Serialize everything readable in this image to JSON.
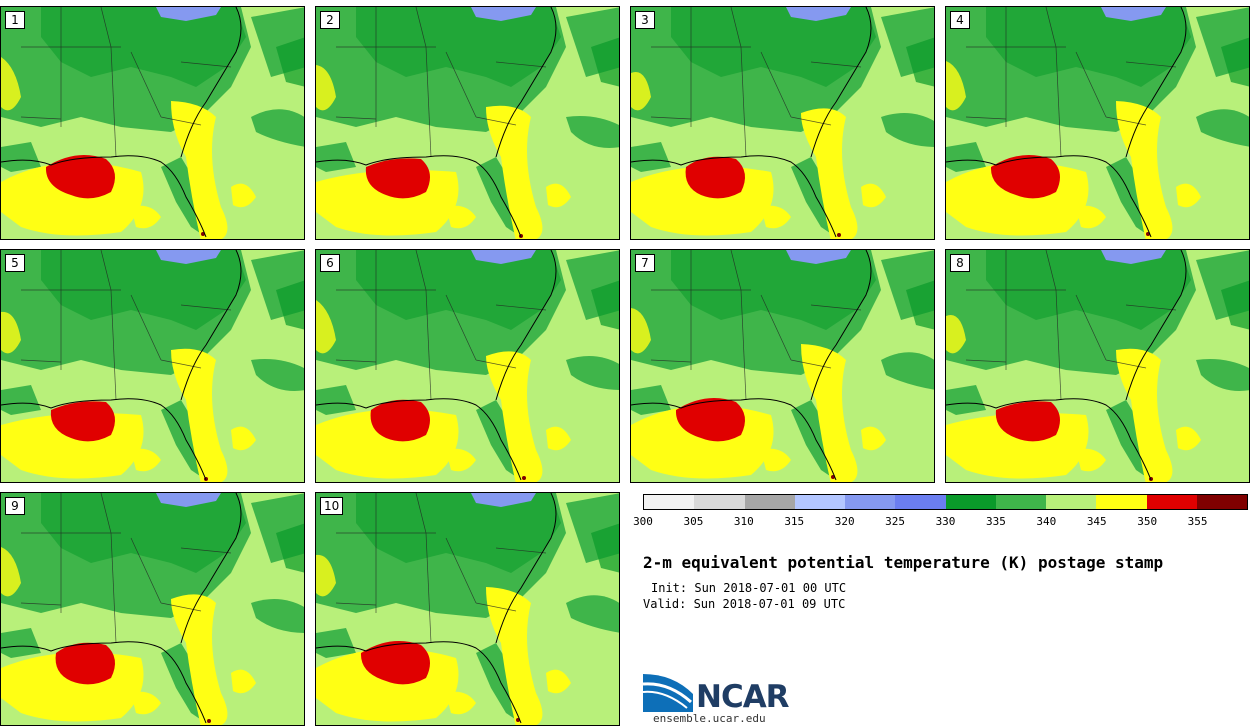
{
  "panels": [
    {
      "label": "1"
    },
    {
      "label": "2"
    },
    {
      "label": "3"
    },
    {
      "label": "4"
    },
    {
      "label": "5"
    },
    {
      "label": "6"
    },
    {
      "label": "7"
    },
    {
      "label": "8"
    },
    {
      "label": "9"
    },
    {
      "label": "10"
    }
  ],
  "colorbar": {
    "ticks": [
      "300",
      "305",
      "310",
      "315",
      "320",
      "325",
      "330",
      "335",
      "340",
      "345",
      "350",
      "355"
    ],
    "colors": [
      "#f2f2f2",
      "#d9d9d9",
      "#a6a6a6",
      "#b3c6ff",
      "#8599f0",
      "#6b7ef0",
      "#0a9a2a",
      "#3fb54a",
      "#b8f07a",
      "#ffff14",
      "#e00000",
      "#800000"
    ]
  },
  "title": "2-m equivalent potential temperature (K) postage stamp",
  "init": "Init: Sun 2018-07-01 00 UTC",
  "valid": "Valid: Sun 2018-07-01 09 UTC",
  "logo": {
    "text": "NCAR",
    "site": "ensemble.ucar.edu"
  },
  "legend_colors": {
    "c330": "#0a9a2a",
    "c335": "#3fb54a",
    "c340": "#b8f07a",
    "c345": "#ffff14",
    "c350": "#e00000",
    "c355": "#800000",
    "c320": "#8599f0"
  }
}
